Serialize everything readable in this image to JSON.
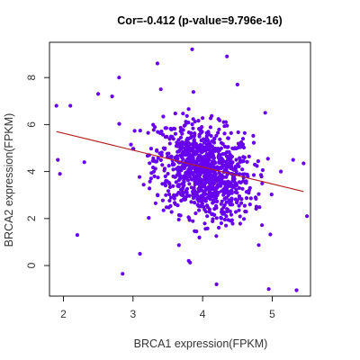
{
  "chart_data": {
    "type": "scatter",
    "title": "Cor=-0.412 (p-value=9.796e-16)",
    "xlabel": "BRCA1 expression(FPKM)",
    "ylabel": "BRCA2 expression(FPKM)",
    "xlim": [
      1.8,
      5.55
    ],
    "ylim": [
      -1.3,
      9.5
    ],
    "x_ticks": [
      2,
      3,
      4,
      5
    ],
    "y_ticks": [
      0,
      2,
      4,
      6,
      8
    ],
    "grid": false,
    "legend": "none",
    "point_color": "#6600ee",
    "regression": {
      "color": "#b22222",
      "x": [
        1.9,
        5.45
      ],
      "y": [
        5.7,
        3.15
      ]
    },
    "outliers": [
      {
        "x": 1.9,
        "y": 6.8
      },
      {
        "x": 1.92,
        "y": 4.5
      },
      {
        "x": 1.95,
        "y": 3.9
      },
      {
        "x": 2.1,
        "y": 6.8
      },
      {
        "x": 2.2,
        "y": 1.3
      },
      {
        "x": 2.5,
        "y": 7.3
      },
      {
        "x": 2.7,
        "y": 7.2
      },
      {
        "x": 2.85,
        "y": -0.35
      },
      {
        "x": 2.8,
        "y": 8.0
      },
      {
        "x": 3.35,
        "y": 8.6
      },
      {
        "x": 3.85,
        "y": 9.2
      },
      {
        "x": 4.35,
        "y": 8.9
      },
      {
        "x": 4.5,
        "y": 7.7
      },
      {
        "x": 4.95,
        "y": -1.0
      },
      {
        "x": 5.35,
        "y": -1.05
      },
      {
        "x": 5.45,
        "y": 4.35
      },
      {
        "x": 5.5,
        "y": 2.1
      },
      {
        "x": 5.3,
        "y": 4.5
      },
      {
        "x": 4.9,
        "y": 6.5
      },
      {
        "x": 3.4,
        "y": 7.5
      },
      {
        "x": 2.3,
        "y": 4.4
      },
      {
        "x": 3.1,
        "y": 0.5
      },
      {
        "x": 4.2,
        "y": -0.8
      },
      {
        "x": 3.8,
        "y": 0.2
      }
    ],
    "cluster": {
      "n": 1000,
      "center_x": 4.02,
      "center_y": 4.0,
      "sd_x": 0.35,
      "sd_y": 1.0,
      "slope": -0.72
    }
  }
}
